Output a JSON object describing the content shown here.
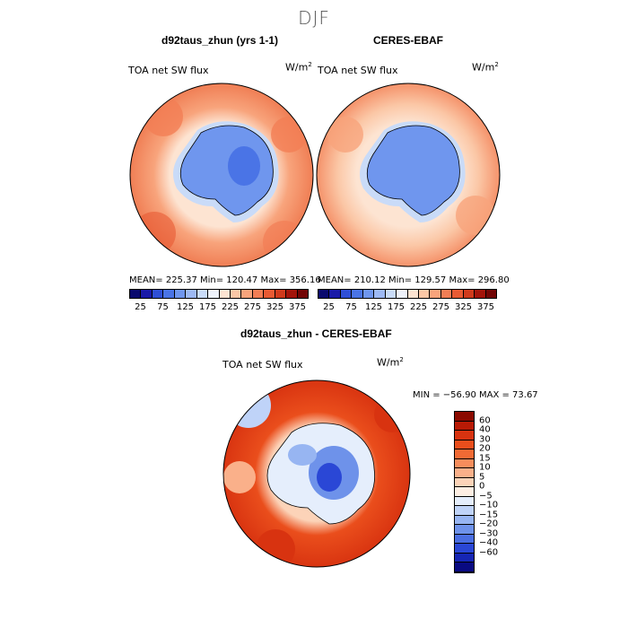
{
  "title": "DJF",
  "panels": [
    {
      "title": "d92taus_zhun (yrs 1-1)",
      "field": "TOA net SW flux",
      "units_base": "W/m",
      "units_exp": "2",
      "stats": "MEAN= 225.37   Min= 120.47   Max= 356.16"
    },
    {
      "title": "CERES-EBAF",
      "field": "TOA net SW flux",
      "units_base": "W/m",
      "units_exp": "2",
      "stats": "MEAN= 210.12   Min= 129.57   Max= 296.80"
    }
  ],
  "diff": {
    "title": "d92taus_zhun - CERES-EBAF",
    "field": "TOA net SW flux",
    "units_base": "W/m",
    "units_exp": "2",
    "stats": "MIN = −56.90 MAX =  73.67"
  },
  "colorbar_abs": {
    "ticks": [
      "25",
      "75",
      "125",
      "175",
      "225",
      "275",
      "325",
      "375"
    ],
    "colors": [
      "#0a0a6e",
      "#1a1aa8",
      "#2f4fd6",
      "#4a74e6",
      "#6f96ee",
      "#9db9f4",
      "#c9dbf8",
      "#eef2fb",
      "#fde4d2",
      "#fbc7a6",
      "#f8a47c",
      "#f27e55",
      "#e85a33",
      "#d03a1c",
      "#a3140a",
      "#720505"
    ]
  },
  "colorbar_diff": {
    "ticks": [
      "60",
      "40",
      "30",
      "20",
      "15",
      "10",
      "5",
      "0",
      "−5",
      "−10",
      "−15",
      "−20",
      "−30",
      "−40",
      "−60"
    ],
    "colors": [
      "#8b0a00",
      "#b81a05",
      "#d83310",
      "#ea4e1c",
      "#f26a34",
      "#f78d5c",
      "#fab08a",
      "#fcd3b8",
      "#fdeee3",
      "#e5eefc",
      "#bfd3f8",
      "#97b5f2",
      "#6e92ea",
      "#4a6ee2",
      "#2a47d6",
      "#1626b4",
      "#090a82"
    ]
  },
  "chart_data": [
    {
      "type": "heatmap",
      "title": "d92taus_zhun (yrs 1-1)",
      "subtitle": "TOA net SW flux",
      "units": "W/m2",
      "mean": 225.37,
      "min": 120.47,
      "max": 356.16,
      "levels": [
        25,
        50,
        75,
        100,
        125,
        150,
        175,
        200,
        225,
        250,
        275,
        300,
        325,
        350,
        375
      ],
      "region": "South Polar Stereographic"
    },
    {
      "type": "heatmap",
      "title": "CERES-EBAF",
      "subtitle": "TOA net SW flux",
      "units": "W/m2",
      "mean": 210.12,
      "min": 129.57,
      "max": 296.8,
      "levels": [
        25,
        50,
        75,
        100,
        125,
        150,
        175,
        200,
        225,
        250,
        275,
        300,
        325,
        350,
        375
      ],
      "region": "South Polar Stereographic"
    },
    {
      "type": "heatmap",
      "title": "d92taus_zhun - CERES-EBAF",
      "subtitle": "TOA net SW flux",
      "units": "W/m2",
      "min": -56.9,
      "max": 73.67,
      "levels": [
        -60,
        -40,
        -30,
        -20,
        -15,
        -10,
        -5,
        0,
        5,
        10,
        15,
        20,
        30,
        40,
        60
      ],
      "region": "South Polar Stereographic"
    }
  ]
}
